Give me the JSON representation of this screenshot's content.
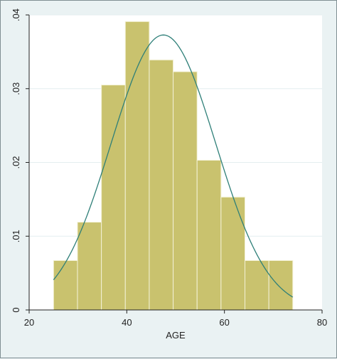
{
  "chart_data": {
    "type": "bar",
    "subtype": "histogram-with-normal-density",
    "xlabel": "AGE",
    "ylabel": "",
    "title": "",
    "xlim": [
      20,
      80
    ],
    "ylim": [
      0,
      0.04
    ],
    "x_ticks": [
      20,
      40,
      60,
      80
    ],
    "y_ticks": [
      0,
      0.01,
      0.02,
      0.03,
      0.04
    ],
    "x_tick_labels": [
      "20",
      "40",
      "60",
      "80"
    ],
    "y_tick_labels": [
      "0",
      ".01",
      ".02",
      ".03",
      ".04"
    ],
    "grid": true,
    "bins": [
      {
        "x0": 25.0,
        "x1": 29.9,
        "density": 0.0067
      },
      {
        "x0": 29.9,
        "x1": 34.8,
        "density": 0.0119
      },
      {
        "x0": 34.8,
        "x1": 39.7,
        "density": 0.0305
      },
      {
        "x0": 39.7,
        "x1": 44.6,
        "density": 0.0391
      },
      {
        "x0": 44.6,
        "x1": 49.5,
        "density": 0.0339
      },
      {
        "x0": 49.5,
        "x1": 54.4,
        "density": 0.0323
      },
      {
        "x0": 54.4,
        "x1": 59.3,
        "density": 0.0203
      },
      {
        "x0": 59.3,
        "x1": 64.2,
        "density": 0.0153
      },
      {
        "x0": 64.2,
        "x1": 69.1,
        "density": 0.0067
      },
      {
        "x0": 69.1,
        "x1": 74.0,
        "density": 0.0067
      }
    ],
    "normal_curve": {
      "mean": 47.5,
      "sd": 10.7,
      "x_from": 25.0,
      "x_to": 74.0
    },
    "colors": {
      "bar_fill": "#c9c26e",
      "bar_stroke": "#f3f1d6",
      "curve": "#2e7f78",
      "plot_bg": "#ffffff",
      "outer_bg": "#eaf2f3",
      "grid": "#e4eef0",
      "axis": "#222222"
    }
  }
}
